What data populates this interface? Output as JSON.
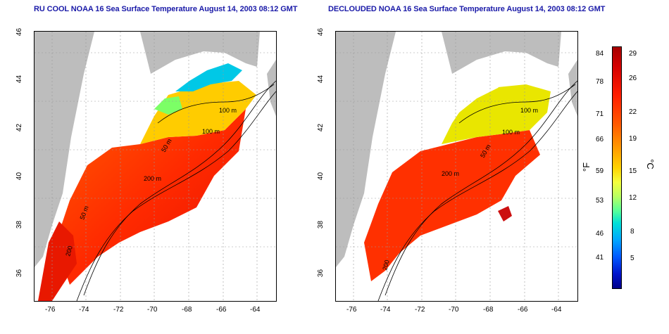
{
  "titles": {
    "left": "RU COOL NOAA 16 Sea Surface Temperature August 14, 2003 08:12 GMT",
    "right": "DECLOUDED NOAA 16 Sea Surface Temperature August 14, 2003 08:12 GMT"
  },
  "axes": {
    "x_ticks": [
      "-76",
      "-74",
      "-72",
      "-70",
      "-68",
      "-66",
      "-64"
    ],
    "y_ticks": [
      "36",
      "38",
      "40",
      "42",
      "44",
      "46"
    ]
  },
  "isobath_labels": {
    "left": [
      "100 m",
      "100 m",
      "50 m",
      "200 m",
      "50 m",
      "200"
    ],
    "right": [
      "100 m",
      "100 m",
      "50 m",
      "200 m",
      "200"
    ]
  },
  "colorbar": {
    "fahrenheit_ticks": [
      "84",
      "78",
      "71",
      "66",
      "59",
      "53",
      "46",
      "41"
    ],
    "celsius_ticks": [
      "29",
      "26",
      "22",
      "19",
      "15",
      "12",
      "8",
      "5"
    ],
    "fahrenheit_unit": "°F",
    "celsius_unit": "°C"
  },
  "colors": {
    "title": "#1a1aa8",
    "land": "#bdbdbd",
    "warm": "#ff3a00",
    "cool": "#00c8e6"
  }
}
